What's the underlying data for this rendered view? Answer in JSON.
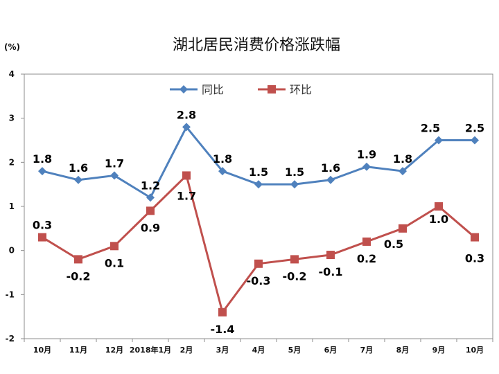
{
  "chart_data": {
    "type": "line",
    "title": "湖北居民消费价格涨跌幅",
    "ylabel": "(%)",
    "ylim": [
      -2,
      4
    ],
    "yticks": [
      4,
      3,
      2,
      1,
      0,
      -1,
      -2
    ],
    "grid": false,
    "legend_position": "top-center",
    "categories": [
      "10月",
      "11月",
      "12月",
      "2018年1月",
      "2月",
      "3月",
      "4月",
      "5月",
      "6月",
      "7月",
      "8月",
      "9月",
      "10月"
    ],
    "series": [
      {
        "name": "同比",
        "color": "#4f81bd",
        "marker": "diamond",
        "values": [
          1.8,
          1.6,
          1.7,
          1.2,
          2.8,
          1.8,
          1.5,
          1.5,
          1.6,
          1.9,
          1.8,
          2.5,
          2.5
        ],
        "labels": [
          "1.8",
          "1.6",
          "1.7",
          "1.2",
          "2.8",
          "1.8",
          "1.5",
          "1.5",
          "1.6",
          "1.9",
          "1.8",
          "2.5",
          "2.5"
        ]
      },
      {
        "name": "环比",
        "color": "#c0504d",
        "marker": "square",
        "values": [
          0.3,
          -0.2,
          0.1,
          0.9,
          1.7,
          -1.4,
          -0.3,
          -0.2,
          -0.1,
          0.2,
          0.5,
          1.0,
          0.3
        ],
        "labels": [
          "0.3",
          "-0.2",
          "0.1",
          "0.9",
          "1.7",
          "-1.4",
          "-0.3",
          "-0.2",
          "-0.1",
          "0.2",
          "0.5",
          "1.0",
          "0.3"
        ]
      }
    ]
  }
}
